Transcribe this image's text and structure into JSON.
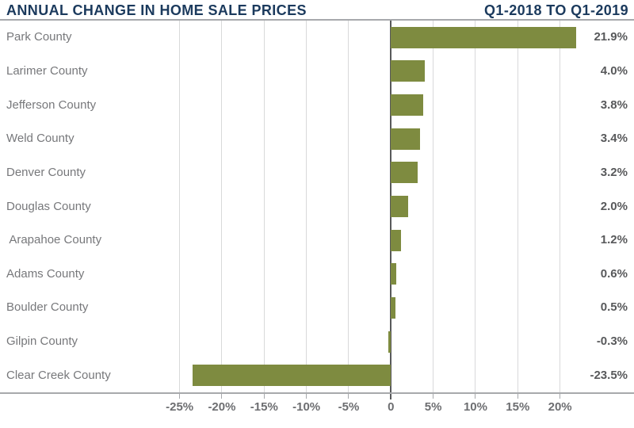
{
  "header": {
    "title_left": "ANNUAL CHANGE IN HOME SALE PRICES",
    "title_right": "Q1-2018 TO Q1-2019"
  },
  "chart_data": {
    "type": "bar",
    "orientation": "horizontal",
    "title": "ANNUAL CHANGE IN HOME SALE PRICES",
    "subtitle": "Q1-2018 TO Q1-2019",
    "categories": [
      "Park County",
      "Larimer County",
      "Jefferson County",
      "Weld County",
      "Denver County",
      "Douglas County",
      " Arapahoe County",
      "Adams County",
      "Boulder County",
      "Gilpin County",
      "Clear Creek County"
    ],
    "values": [
      21.9,
      4.0,
      3.8,
      3.4,
      3.2,
      2.0,
      1.2,
      0.6,
      0.5,
      -0.3,
      -23.5
    ],
    "value_labels": [
      "21.9%",
      "4.0%",
      "3.8%",
      "3.4%",
      "3.2%",
      "2.0%",
      "1.2%",
      "0.6%",
      "0.5%",
      "-0.3%",
      "-23.5%"
    ],
    "xticks": [
      -25,
      -20,
      -15,
      -10,
      -5,
      0,
      5,
      10,
      15,
      20
    ],
    "xtick_labels": [
      "-25%",
      "-20%",
      "-15%",
      "-10%",
      "-5%",
      "0",
      "5%",
      "10%",
      "15%",
      "20%"
    ],
    "grid": true,
    "legend": false,
    "xlabel": "",
    "ylabel": "",
    "colors": {
      "bar": "#7e8b40",
      "title": "#1b3a5d",
      "category_label": "#77787b",
      "value_label": "#58595b",
      "axis_label": "#6d6e71",
      "gridline": "#d8d9da",
      "zero_line": "#58595b",
      "border": "#a7a9ac",
      "background": "#ffffff"
    }
  }
}
